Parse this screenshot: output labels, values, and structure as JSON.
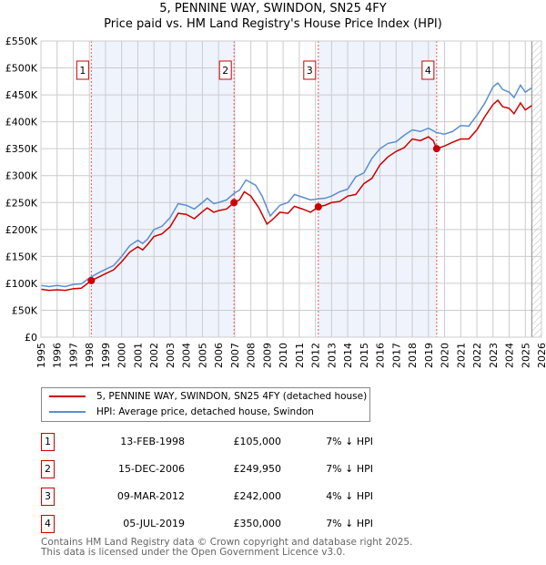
{
  "chart_data": {
    "type": "line",
    "title": "5, PENNINE WAY, SWINDON, SN25 4FY",
    "subtitle": "Price paid vs. HM Land Registry's House Price Index (HPI)",
    "xlim": [
      1995,
      2026
    ],
    "ylim": [
      0,
      550000
    ],
    "x_ticks": [
      "1995",
      "1996",
      "1997",
      "1998",
      "1999",
      "2000",
      "2001",
      "2002",
      "2003",
      "2004",
      "2005",
      "2006",
      "2007",
      "2008",
      "2009",
      "2010",
      "2011",
      "2012",
      "2013",
      "2014",
      "2015",
      "2016",
      "2017",
      "2018",
      "2019",
      "2020",
      "2021",
      "2022",
      "2023",
      "2024",
      "2025",
      "2026"
    ],
    "y_ticks": [
      {
        "v": 0,
        "l": "£0"
      },
      {
        "v": 50000,
        "l": "£50K"
      },
      {
        "v": 100000,
        "l": "£100K"
      },
      {
        "v": 150000,
        "l": "£150K"
      },
      {
        "v": 200000,
        "l": "£200K"
      },
      {
        "v": 250000,
        "l": "£250K"
      },
      {
        "v": 300000,
        "l": "£300K"
      },
      {
        "v": 350000,
        "l": "£350K"
      },
      {
        "v": 400000,
        "l": "£400K"
      },
      {
        "v": 450000,
        "l": "£450K"
      },
      {
        "v": 500000,
        "l": "£500K"
      },
      {
        "v": 550000,
        "l": "£550K"
      }
    ],
    "grid": true,
    "forecast_from": 2025.4,
    "series": [
      {
        "name": "5, PENNINE WAY, SWINDON, SN25 4FY (detached house)",
        "color": "#cc0000",
        "x": [
          1995,
          1995.5,
          1996,
          1996.5,
          1997,
          1997.5,
          1998.12,
          1998.6,
          1999,
          1999.5,
          2000,
          2000.5,
          2001,
          2001.3,
          2001.6,
          2002,
          2002.5,
          2003,
          2003.5,
          2004,
          2004.5,
          2005,
          2005.3,
          2005.7,
          2006,
          2006.5,
          2006.96,
          2007.3,
          2007.6,
          2008,
          2008.5,
          2009,
          2009.4,
          2009.8,
          2010.3,
          2010.7,
          2011.2,
          2011.7,
          2012.18,
          2012.6,
          2013,
          2013.5,
          2014,
          2014.5,
          2015,
          2015.5,
          2016,
          2016.5,
          2017,
          2017.5,
          2018,
          2018.5,
          2019,
          2019.3,
          2019.51,
          2020,
          2020.5,
          2021,
          2021.5,
          2022,
          2022.5,
          2023,
          2023.3,
          2023.6,
          2024,
          2024.3,
          2024.7,
          2025,
          2025.4
        ],
        "y": [
          89000,
          87000,
          88000,
          87000,
          90000,
          91000,
          105000,
          112000,
          118000,
          125000,
          140000,
          158000,
          168000,
          162000,
          172000,
          187000,
          192000,
          205000,
          230000,
          228000,
          220000,
          233000,
          240000,
          232000,
          235000,
          238000,
          249950,
          255000,
          270000,
          262000,
          240000,
          210000,
          220000,
          232000,
          230000,
          243000,
          238000,
          232000,
          242000,
          245000,
          250000,
          252000,
          262000,
          265000,
          285000,
          295000,
          320000,
          335000,
          345000,
          352000,
          368000,
          365000,
          372000,
          365000,
          350000,
          355000,
          362000,
          368000,
          368000,
          385000,
          410000,
          432000,
          440000,
          428000,
          425000,
          415000,
          435000,
          422000,
          430000
        ]
      },
      {
        "name": "HPI: Average price, detached house, Swindon",
        "color": "#5b8fd0",
        "x": [
          1995,
          1995.5,
          1996,
          1996.5,
          1997,
          1997.5,
          1998,
          1998.6,
          1999,
          1999.5,
          2000,
          2000.5,
          2001,
          2001.3,
          2001.6,
          2002,
          2002.5,
          2003,
          2003.5,
          2004,
          2004.5,
          2005,
          2005.3,
          2005.7,
          2006,
          2006.5,
          2007,
          2007.3,
          2007.7,
          2008.3,
          2008.7,
          2009.2,
          2009.8,
          2010.3,
          2010.7,
          2011.2,
          2011.7,
          2012.2,
          2012.6,
          2013,
          2013.5,
          2014,
          2014.5,
          2015,
          2015.5,
          2016,
          2016.5,
          2017,
          2017.5,
          2018,
          2018.5,
          2019,
          2019.5,
          2020,
          2020.5,
          2021,
          2021.5,
          2022,
          2022.5,
          2023,
          2023.3,
          2023.6,
          2024,
          2024.3,
          2024.7,
          2025,
          2025.4
        ],
        "y": [
          96000,
          94000,
          96000,
          94000,
          98000,
          99000,
          110000,
          120000,
          126000,
          133000,
          150000,
          170000,
          180000,
          174000,
          182000,
          200000,
          206000,
          222000,
          248000,
          245000,
          238000,
          250000,
          258000,
          248000,
          250000,
          255000,
          268000,
          273000,
          292000,
          282000,
          262000,
          225000,
          245000,
          250000,
          265000,
          260000,
          255000,
          257000,
          258000,
          262000,
          270000,
          275000,
          298000,
          305000,
          332000,
          350000,
          360000,
          363000,
          375000,
          385000,
          382000,
          388000,
          380000,
          377000,
          382000,
          393000,
          392000,
          412000,
          435000,
          465000,
          472000,
          460000,
          455000,
          445000,
          468000,
          455000,
          463000
        ]
      }
    ],
    "sales": [
      {
        "label": "1",
        "x": 1998.12,
        "y": 105000,
        "date": "13-FEB-1998",
        "price": "£105,000",
        "hpi": "7% ↓ HPI"
      },
      {
        "label": "2",
        "x": 2006.96,
        "y": 249950,
        "date": "15-DEC-2006",
        "price": "£249,950",
        "hpi": "7% ↓ HPI"
      },
      {
        "label": "3",
        "x": 2012.18,
        "y": 242000,
        "date": "09-MAR-2012",
        "price": "£242,000",
        "hpi": "4% ↓ HPI"
      },
      {
        "label": "4",
        "x": 2019.51,
        "y": 350000,
        "date": "05-JUL-2019",
        "price": "£350,000",
        "hpi": "7% ↓ HPI"
      }
    ]
  },
  "footer": {
    "line1": "Contains HM Land Registry data © Crown copyright and database right 2025.",
    "line2": "This data is licensed under the Open Government Licence v3.0."
  }
}
